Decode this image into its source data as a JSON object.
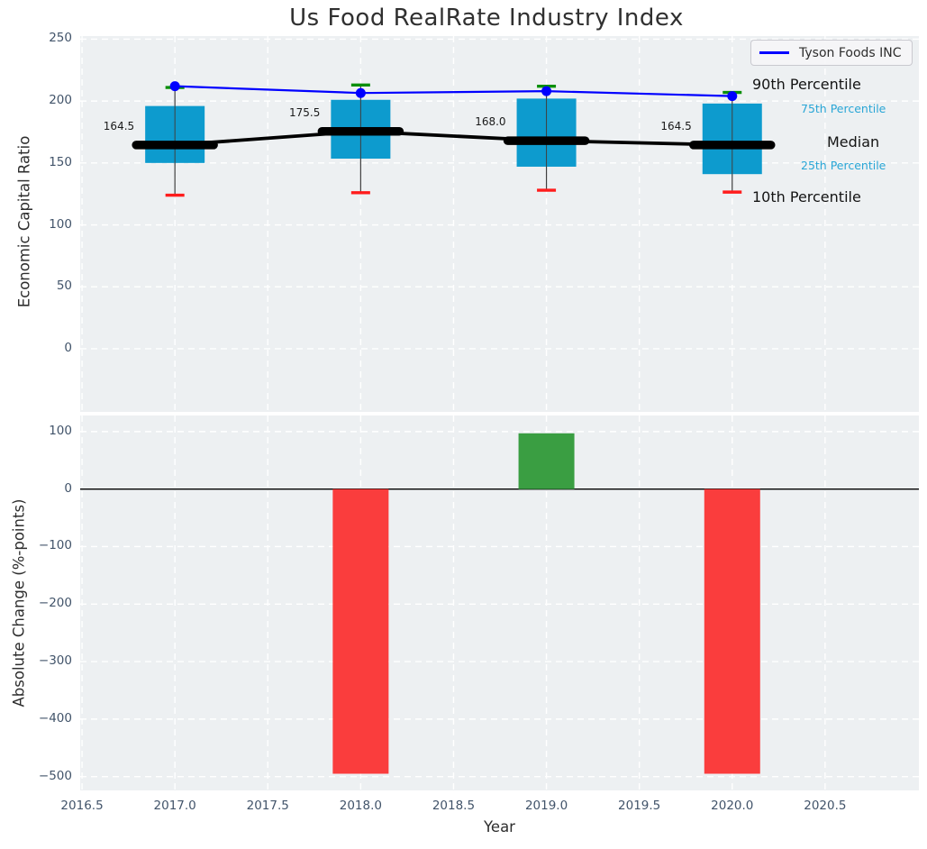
{
  "title": "Us Food RealRate Industry Index",
  "legend": {
    "label": "Tyson Foods INC",
    "line_color": "#0000ff"
  },
  "percentile_labels": {
    "p90": "90th Percentile",
    "p75": "75th Percentile",
    "median": "Median",
    "p25": "25th Percentile",
    "p10": "10th Percentile"
  },
  "colors": {
    "plot_bg": "#edf0f2",
    "grid": "#ffffff",
    "box_fill": "#0d9bce",
    "whisker": "#3f3f3f",
    "cap_top": "#0a8f0a",
    "cap_bottom": "#ff1c1c",
    "median_line": "#000000",
    "tyson_line": "#0000ff",
    "bar_up": "#3a9e42",
    "bar_down": "#fa3d3d",
    "zero_line": "#000000",
    "tick_label": "#42546a",
    "cyan_label": "#29a6d6"
  },
  "chart_data": [
    {
      "type": "box",
      "title": "Us Food RealRate Industry Index",
      "ylabel": "Economic Capital Ratio",
      "xlim": [
        2016.49,
        2021.005
      ],
      "ylim": [
        -51,
        252.5
      ],
      "ytick_labels": [
        "250",
        "200",
        "150",
        "100",
        "50",
        "0"
      ],
      "ytick_values": [
        250,
        200,
        150,
        100,
        50,
        0
      ],
      "grid": true,
      "legend_position": "upper right",
      "categories": [
        2017,
        2018,
        2019,
        2020
      ],
      "boxes": [
        {
          "year": 2017,
          "p10": 124,
          "p25": 150,
          "median": 164.5,
          "p75": 196,
          "p90": 211,
          "label": "164.5"
        },
        {
          "year": 2018,
          "p10": 126,
          "p25": 153.5,
          "median": 175.5,
          "p75": 201,
          "p90": 213,
          "label": "175.5"
        },
        {
          "year": 2019,
          "p10": 128,
          "p25": 147,
          "median": 168.0,
          "p75": 202,
          "p90": 212,
          "label": "168.0"
        },
        {
          "year": 2020,
          "p10": 126.5,
          "p25": 141,
          "median": 164.5,
          "p75": 198,
          "p90": 207,
          "label": "164.5"
        }
      ],
      "series": [
        {
          "name": "Tyson Foods INC",
          "x": [
            2017,
            2018,
            2019,
            2020
          ],
          "values": [
            212,
            206.5,
            208,
            204
          ]
        }
      ]
    },
    {
      "type": "bar",
      "ylabel": "Absolute Change (%-points)",
      "xlabel": "Year",
      "xlim": [
        2016.49,
        2021.005
      ],
      "ylim": [
        -524,
        128
      ],
      "xtick_labels": [
        "2016.5",
        "2017.0",
        "2017.5",
        "2018.0",
        "2018.5",
        "2019.0",
        "2019.5",
        "2020.0",
        "2020.5"
      ],
      "xtick_values": [
        2016.5,
        2017,
        2017.5,
        2018,
        2018.5,
        2019,
        2019.5,
        2020,
        2020.5
      ],
      "ytick_labels": [
        "100",
        "0",
        "−100",
        "−200",
        "−300",
        "−400",
        "−500"
      ],
      "ytick_values": [
        100,
        0,
        -100,
        -200,
        -300,
        -400,
        -500
      ],
      "grid": true,
      "zero_line": true,
      "x": [
        2018,
        2019,
        2020
      ],
      "values": [
        -495,
        97,
        -495
      ],
      "bar_colors": [
        "#fa3d3d",
        "#3a9e42",
        "#fa3d3d"
      ]
    }
  ]
}
